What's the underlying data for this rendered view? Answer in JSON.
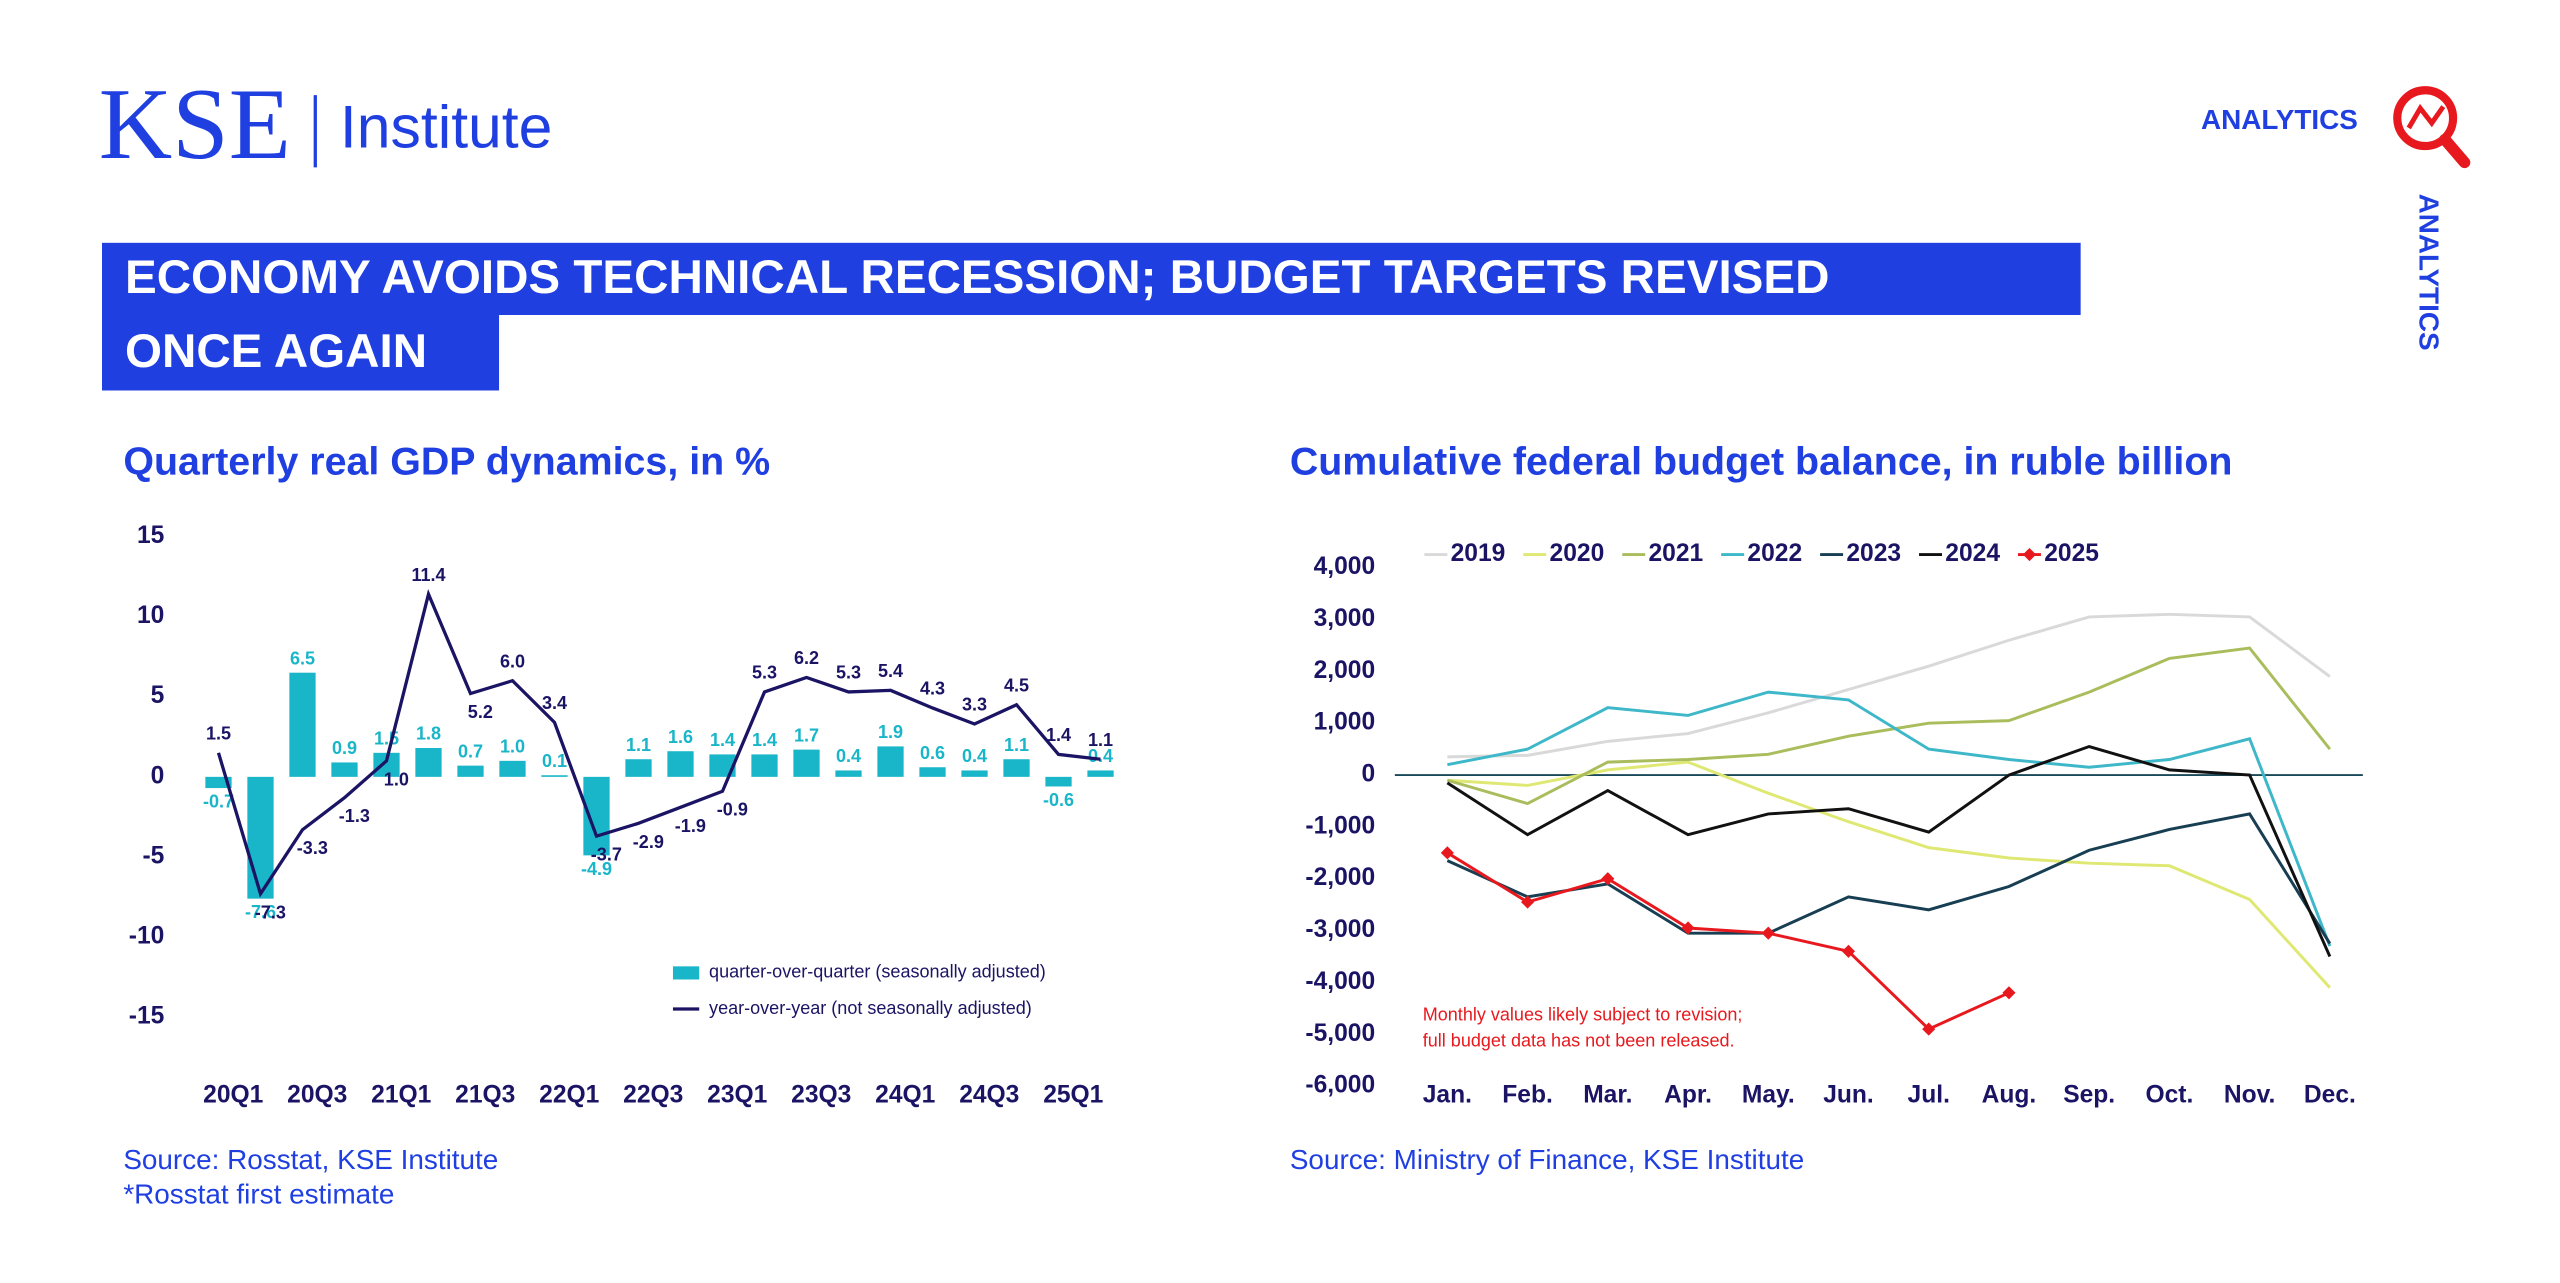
{
  "header": {
    "logo": "KSE",
    "institute": "Institute",
    "tag": "ANALYTICS",
    "side_tag": "ANALYTICS",
    "headline": [
      "ECONOMY AVOIDS TECHNICAL RECESSION; BUDGET TARGETS REVISED",
      "ONCE AGAIN"
    ]
  },
  "chart_data": [
    {
      "type": "combo",
      "title": "Quarterly real GDP dynamics, in %",
      "source": "Source: Rosstat, KSE Institute",
      "note": "*Rosstat first estimate",
      "categories": [
        "20Q1",
        null,
        "20Q3",
        null,
        "21Q1",
        null,
        "21Q3",
        null,
        "22Q1",
        null,
        "22Q3",
        null,
        "23Q1",
        null,
        "23Q3",
        null,
        "24Q1",
        null,
        "24Q3",
        null,
        "25Q1",
        null
      ],
      "ylim": [
        -15,
        15
      ],
      "yticks": [
        15,
        10,
        5,
        0,
        -5,
        -10,
        -15
      ],
      "legend": "lower right",
      "series": [
        {
          "name": "quarter-over-quarter (seasonally adjusted)",
          "type": "bar",
          "color": "#19b5c9",
          "values": [
            -0.7,
            -7.6,
            6.5,
            0.9,
            1.5,
            1.8,
            0.7,
            1.0,
            0.1,
            -4.9,
            1.1,
            1.6,
            1.4,
            1.4,
            1.7,
            0.4,
            1.9,
            0.6,
            0.4,
            1.1,
            -0.6,
            0.4
          ],
          "value_labels": [
            "-0.7",
            "-7.6",
            "6.5",
            "0.9",
            "1.5",
            "1.8",
            "0.7",
            "1.0",
            "0.1",
            "-4.9",
            "1.1",
            "1.6",
            "1.4",
            "1.4",
            "1.7",
            "0.4",
            "1.9",
            "0.6",
            "0.4",
            "1.1",
            "-0.6",
            "0.4"
          ]
        },
        {
          "name": "year-over-year (not seasonally adjusted)",
          "type": "line",
          "color": "#1b1464",
          "values": [
            1.5,
            -7.3,
            -3.3,
            -1.3,
            1.0,
            11.4,
            5.2,
            6.0,
            3.4,
            -3.7,
            -2.9,
            -1.9,
            -0.9,
            5.3,
            6.2,
            5.3,
            5.4,
            4.3,
            3.3,
            4.5,
            1.4,
            1.1
          ],
          "value_labels": [
            "1.5",
            "-7.3",
            "-3.3",
            "-1.3",
            "1.0",
            "11.4",
            "5.2",
            "6.0",
            "3.4",
            "-3.7",
            "-2.9",
            "-1.9",
            "-0.9",
            "5.3",
            "6.2",
            "5.3",
            "5.4",
            "4.3",
            "3.3",
            "4.5",
            "1.4",
            "1.1"
          ]
        }
      ]
    },
    {
      "type": "line",
      "title": "Cumulative federal budget balance, in ruble billion",
      "source": "Source: Ministry of Finance, KSE Institute",
      "annotation": [
        "Monthly values likely subject to revision;",
        "full budget data has not been released."
      ],
      "categories": [
        "Jan.",
        "Feb.",
        "Mar.",
        "Apr.",
        "May.",
        "Jun.",
        "Jul.",
        "Aug.",
        "Sep.",
        "Oct.",
        "Nov.",
        "Dec."
      ],
      "ylim": [
        -6000,
        4000
      ],
      "legend": "upper left",
      "yticks": [
        {
          "value": 4000,
          "label": "4,000"
        },
        {
          "value": 3000,
          "label": "3,000"
        },
        {
          "value": 2000,
          "label": "2,000"
        },
        {
          "value": 1000,
          "label": "1,000"
        },
        0,
        {
          "value": -1000,
          "label": "-1,000"
        },
        {
          "value": -2000,
          "label": "-2,000"
        },
        {
          "value": -3000,
          "label": "-3,000"
        },
        {
          "value": -4000,
          "label": "-4,000"
        },
        {
          "value": -5000,
          "label": "-5,000"
        },
        {
          "value": -6000,
          "label": "-6,000"
        }
      ],
      "series": [
        {
          "name": "2019",
          "color": "#d9d9d9",
          "values": [
            350,
            380,
            650,
            800,
            1200,
            1650,
            2100,
            2600,
            3050,
            3100,
            3050,
            1900
          ]
        },
        {
          "name": "2020",
          "color": "#dfe872",
          "values": [
            -100,
            -200,
            100,
            250,
            -350,
            -900,
            -1400,
            -1600,
            -1700,
            -1750,
            -2400,
            -4100
          ]
        },
        {
          "name": "2021",
          "color": "#a9bd5c",
          "values": [
            -100,
            -550,
            250,
            300,
            400,
            750,
            1000,
            1050,
            1600,
            2250,
            2450,
            500
          ]
        },
        {
          "name": "2022",
          "color": "#3eb7c9",
          "values": [
            200,
            500,
            1300,
            1150,
            1600,
            1450,
            500,
            300,
            150,
            300,
            700,
            -3300
          ]
        },
        {
          "name": "2023",
          "color": "#173e52",
          "values": [
            -1650,
            -2350,
            -2100,
            -3050,
            -3050,
            -2350,
            -2600,
            -2150,
            -1450,
            -1050,
            -750,
            -3250
          ]
        },
        {
          "name": "2024",
          "color": "#111111",
          "values": [
            -150,
            -1150,
            -300,
            -1150,
            -750,
            -650,
            -1100,
            0,
            550,
            100,
            0,
            -3500
          ]
        },
        {
          "name": "2025",
          "color": "#e8191e",
          "marker": "diamond",
          "values": [
            -1500,
            -2450,
            -2000,
            -2950,
            -3050,
            -3400,
            -4900,
            -4200,
            null,
            null,
            null,
            null
          ]
        }
      ]
    }
  ]
}
